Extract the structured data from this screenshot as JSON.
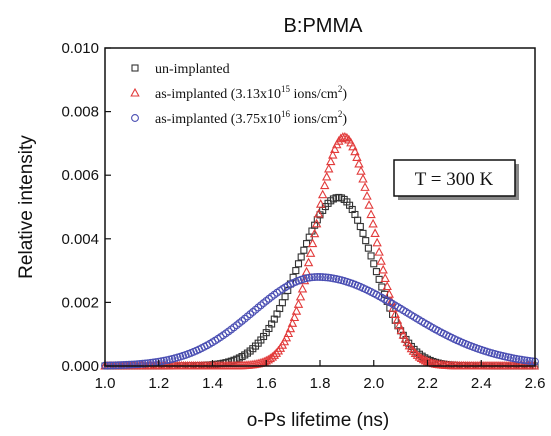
{
  "chart_data": {
    "type": "scatter",
    "title": "B:PMMA",
    "xlabel": "o-Ps lifetime (ns)",
    "ylabel": "Relative intensity",
    "xlim": [
      1.0,
      2.6
    ],
    "ylim": [
      0.0,
      0.01
    ],
    "xticks": [
      "1.0",
      "1.2",
      "1.4",
      "1.6",
      "1.8",
      "2.0",
      "2.2",
      "2.4",
      "2.6"
    ],
    "yticks": [
      "0.000",
      "0.002",
      "0.004",
      "0.006",
      "0.008",
      "0.010"
    ],
    "grid": false,
    "legend_position": "top-left",
    "annotation": "T = 300 K",
    "series": [
      {
        "name": "un-implanted",
        "legend_main": "un-implanted",
        "legend_exp": "",
        "legend_tail": "",
        "marker": "square",
        "color": "#333333",
        "peak_x": 1.87,
        "peak_y": 0.0053,
        "sigma_left": 0.15,
        "sigma_right": 0.13,
        "x_start": 1.0,
        "x_end": 2.6,
        "step": 0.01
      },
      {
        "name": "as-implanted (3.13x10^15 ions/cm^2)",
        "legend_main": "as-implanted (3.13x10",
        "legend_exp": "15",
        "legend_tail": " ions/cm",
        "legend_unit_exp": "2",
        "legend_close": ")",
        "marker": "triangle",
        "color": "#e23b3b",
        "peak_x": 1.89,
        "peak_y": 0.0072,
        "sigma_left": 0.105,
        "sigma_right": 0.11,
        "x_start": 1.0,
        "x_end": 2.6,
        "step": 0.0075
      },
      {
        "name": "as-implanted (3.75x10^16 ions/cm^2)",
        "legend_main": "as-implanted (3.75x10",
        "legend_exp": "16",
        "legend_tail": " ions/cm",
        "legend_unit_exp": "2",
        "legend_close": ")",
        "marker": "circle",
        "color": "#4b4fb3",
        "peak_x": 1.79,
        "peak_y": 0.0028,
        "sigma_left": 0.24,
        "sigma_right": 0.33,
        "x_start": 1.0,
        "x_end": 2.6,
        "step": 0.01
      }
    ]
  }
}
